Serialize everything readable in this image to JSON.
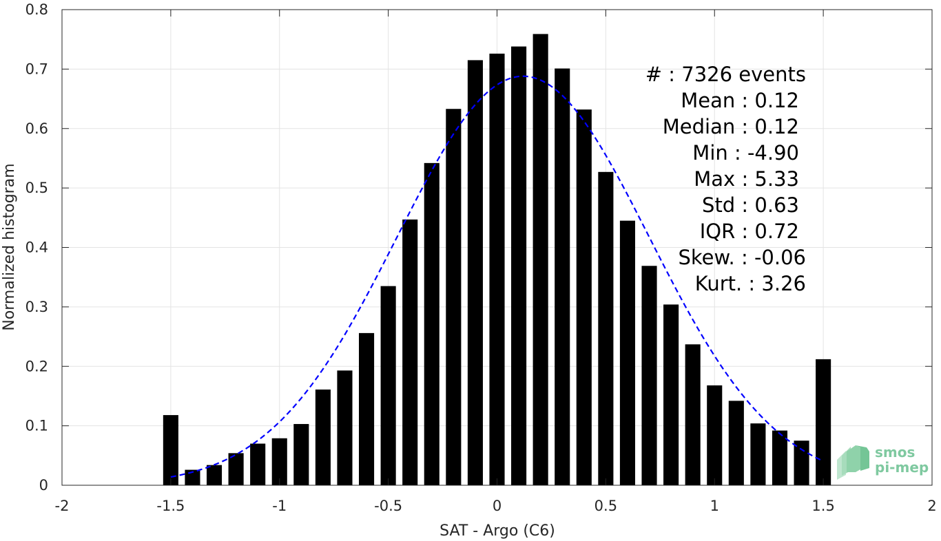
{
  "chart_data": {
    "type": "bar",
    "xlabel": "SAT - Argo (C6)",
    "ylabel": "Normalized histogram",
    "xlim": [
      -2,
      2
    ],
    "ylim": [
      0,
      0.8
    ],
    "xticks": [
      -2,
      -1.5,
      -1,
      -0.5,
      0,
      0.5,
      1,
      1.5,
      2
    ],
    "xtick_labels": [
      "-2",
      "-1.5",
      "-1",
      "-0.5",
      "0",
      "0.5",
      "1",
      "1.5",
      "2"
    ],
    "yticks": [
      0,
      0.1,
      0.2,
      0.3,
      0.4,
      0.5,
      0.6,
      0.7,
      0.8
    ],
    "ytick_labels": [
      "0",
      "0.1",
      "0.2",
      "0.3",
      "0.4",
      "0.5",
      "0.6",
      "0.7",
      "0.8"
    ],
    "grid": true,
    "bar_color": "#000000",
    "bar_width": 0.07,
    "x": [
      -1.5,
      -1.4,
      -1.3,
      -1.2,
      -1.1,
      -1.0,
      -0.9,
      -0.8,
      -0.7,
      -0.6,
      -0.5,
      -0.4,
      -0.3,
      -0.2,
      -0.1,
      0.0,
      0.1,
      0.2,
      0.3,
      0.4,
      0.5,
      0.6,
      0.7,
      0.8,
      0.9,
      1.0,
      1.1,
      1.2,
      1.3,
      1.4,
      1.5
    ],
    "values": [
      0.118,
      0.026,
      0.034,
      0.054,
      0.07,
      0.079,
      0.103,
      0.161,
      0.193,
      0.256,
      0.335,
      0.447,
      0.542,
      0.633,
      0.715,
      0.726,
      0.738,
      0.759,
      0.701,
      0.632,
      0.527,
      0.445,
      0.369,
      0.304,
      0.237,
      0.168,
      0.142,
      0.104,
      0.092,
      0.075,
      0.212
    ],
    "fit_curve": {
      "style": "dashed",
      "color": "#0000ff",
      "mean": 0.12,
      "peak": 0.688,
      "sigma": 0.58,
      "x_range": [
        -1.5,
        1.5
      ]
    },
    "stats": [
      {
        "label": "#  : 7326 events"
      },
      {
        "label": "Mean : 0.12"
      },
      {
        "label": "Median : 0.12"
      },
      {
        "label": "Min : -4.90"
      },
      {
        "label": "Max : 5.33"
      },
      {
        "label": "Std : 0.63"
      },
      {
        "label": "IQR : 0.72"
      },
      {
        "label": "Skew. : -0.06"
      },
      {
        "label": "Kurt. : 3.26"
      }
    ]
  },
  "logo": {
    "line1": "smos",
    "line2": "pi-mep",
    "color": "#7fc9a0"
  }
}
